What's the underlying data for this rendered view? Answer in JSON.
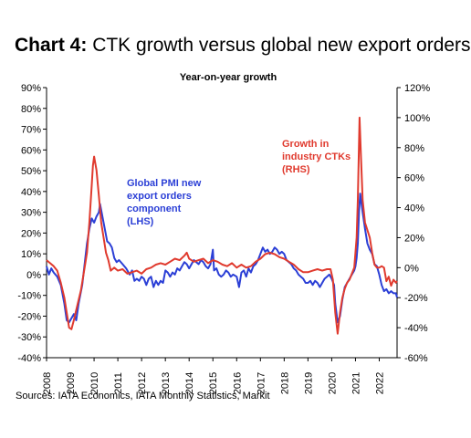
{
  "header": {
    "title_bold": "Chart 4:",
    "title_rest": " CTK growth versus global new export orders"
  },
  "chart_data": {
    "type": "line",
    "title": "Chart 4: CTK growth versus global new export orders",
    "subtitle": "Year-on-year growth",
    "left_axis": {
      "min": -0.4,
      "max": 0.9,
      "ticks": [
        "90%",
        "80%",
        "70%",
        "60%",
        "50%",
        "40%",
        "30%",
        "20%",
        "10%",
        "0%",
        "-10%",
        "-20%",
        "-30%",
        "-40%"
      ]
    },
    "right_axis": {
      "min": -0.6,
      "max": 1.2,
      "ticks": [
        "120%",
        "100%",
        "80%",
        "60%",
        "40%",
        "20%",
        "0%",
        "-20%",
        "-40%",
        "-60%"
      ]
    },
    "x_axis": {
      "min": 2008.0,
      "max": 2022.75,
      "ticks": [
        "2008",
        "2009",
        "2010",
        "2011",
        "2012",
        "2013",
        "2014",
        "2015",
        "2016",
        "2017",
        "2018",
        "2019",
        "2020",
        "2021",
        "2022"
      ]
    },
    "legend": "inline annotations",
    "grid": false,
    "series": [
      {
        "name": "Global PMI new export orders component (LHS)",
        "axis": "left",
        "color": "#2b3fd6",
        "points": [
          [
            2008.0,
            0.04
          ],
          [
            2008.1,
            0.0
          ],
          [
            2008.2,
            0.03
          ],
          [
            2008.3,
            0.01
          ],
          [
            2008.45,
            -0.01
          ],
          [
            2008.6,
            -0.05
          ],
          [
            2008.75,
            -0.14
          ],
          [
            2008.85,
            -0.22
          ],
          [
            2008.95,
            -0.23
          ],
          [
            2009.05,
            -0.21
          ],
          [
            2009.15,
            -0.19
          ],
          [
            2009.25,
            -0.22
          ],
          [
            2009.35,
            -0.14
          ],
          [
            2009.5,
            -0.05
          ],
          [
            2009.6,
            0.05
          ],
          [
            2009.7,
            0.15
          ],
          [
            2009.8,
            0.22
          ],
          [
            2009.9,
            0.27
          ],
          [
            2010.0,
            0.25
          ],
          [
            2010.1,
            0.28
          ],
          [
            2010.2,
            0.3
          ],
          [
            2010.25,
            0.34
          ],
          [
            2010.35,
            0.28
          ],
          [
            2010.45,
            0.22
          ],
          [
            2010.55,
            0.16
          ],
          [
            2010.65,
            0.15
          ],
          [
            2010.75,
            0.13
          ],
          [
            2010.85,
            0.08
          ],
          [
            2010.95,
            0.06
          ],
          [
            2011.05,
            0.07
          ],
          [
            2011.2,
            0.05
          ],
          [
            2011.35,
            0.03
          ],
          [
            2011.5,
            0.0
          ],
          [
            2011.6,
            0.02
          ],
          [
            2011.7,
            -0.03
          ],
          [
            2011.8,
            -0.02
          ],
          [
            2011.9,
            -0.03
          ],
          [
            2012.0,
            -0.01
          ],
          [
            2012.1,
            -0.02
          ],
          [
            2012.2,
            -0.05
          ],
          [
            2012.3,
            -0.02
          ],
          [
            2012.4,
            -0.01
          ],
          [
            2012.5,
            -0.06
          ],
          [
            2012.6,
            -0.03
          ],
          [
            2012.7,
            -0.05
          ],
          [
            2012.8,
            -0.03
          ],
          [
            2012.9,
            -0.04
          ],
          [
            2013.0,
            0.02
          ],
          [
            2013.1,
            0.01
          ],
          [
            2013.2,
            -0.01
          ],
          [
            2013.3,
            0.01
          ],
          [
            2013.4,
            0.0
          ],
          [
            2013.5,
            0.03
          ],
          [
            2013.6,
            0.02
          ],
          [
            2013.7,
            0.04
          ],
          [
            2013.8,
            0.06
          ],
          [
            2013.9,
            0.05
          ],
          [
            2014.0,
            0.03
          ],
          [
            2014.1,
            0.05
          ],
          [
            2014.2,
            0.07
          ],
          [
            2014.3,
            0.06
          ],
          [
            2014.4,
            0.05
          ],
          [
            2014.5,
            0.07
          ],
          [
            2014.6,
            0.06
          ],
          [
            2014.7,
            0.04
          ],
          [
            2014.8,
            0.03
          ],
          [
            2014.9,
            0.05
          ],
          [
            2015.0,
            0.12
          ],
          [
            2015.05,
            0.02
          ],
          [
            2015.15,
            0.03
          ],
          [
            2015.25,
            0.0
          ],
          [
            2015.35,
            -0.01
          ],
          [
            2015.45,
            0.0
          ],
          [
            2015.55,
            0.02
          ],
          [
            2015.65,
            0.01
          ],
          [
            2015.75,
            -0.01
          ],
          [
            2015.85,
            0.0
          ],
          [
            2016.0,
            -0.01
          ],
          [
            2016.1,
            -0.06
          ],
          [
            2016.2,
            0.01
          ],
          [
            2016.3,
            0.02
          ],
          [
            2016.4,
            -0.01
          ],
          [
            2016.5,
            0.03
          ],
          [
            2016.6,
            0.01
          ],
          [
            2016.7,
            0.04
          ],
          [
            2016.8,
            0.05
          ],
          [
            2016.9,
            0.07
          ],
          [
            2017.0,
            0.1
          ],
          [
            2017.1,
            0.13
          ],
          [
            2017.2,
            0.11
          ],
          [
            2017.3,
            0.12
          ],
          [
            2017.4,
            0.1
          ],
          [
            2017.5,
            0.11
          ],
          [
            2017.6,
            0.13
          ],
          [
            2017.7,
            0.12
          ],
          [
            2017.8,
            0.1
          ],
          [
            2017.9,
            0.11
          ],
          [
            2018.0,
            0.1
          ],
          [
            2018.1,
            0.07
          ],
          [
            2018.2,
            0.06
          ],
          [
            2018.3,
            0.05
          ],
          [
            2018.4,
            0.03
          ],
          [
            2018.5,
            0.02
          ],
          [
            2018.6,
            0.0
          ],
          [
            2018.7,
            -0.01
          ],
          [
            2018.8,
            -0.02
          ],
          [
            2018.9,
            -0.04
          ],
          [
            2019.0,
            -0.04
          ],
          [
            2019.1,
            -0.03
          ],
          [
            2019.2,
            -0.05
          ],
          [
            2019.3,
            -0.03
          ],
          [
            2019.4,
            -0.04
          ],
          [
            2019.5,
            -0.06
          ],
          [
            2019.6,
            -0.04
          ],
          [
            2019.7,
            -0.02
          ],
          [
            2019.8,
            -0.01
          ],
          [
            2019.9,
            0.0
          ],
          [
            2020.0,
            -0.02
          ],
          [
            2020.1,
            -0.05
          ],
          [
            2020.15,
            -0.14
          ],
          [
            2020.25,
            -0.23
          ],
          [
            2020.35,
            -0.2
          ],
          [
            2020.45,
            -0.12
          ],
          [
            2020.55,
            -0.06
          ],
          [
            2020.65,
            -0.04
          ],
          [
            2020.75,
            -0.02
          ],
          [
            2020.85,
            0.0
          ],
          [
            2020.95,
            0.02
          ],
          [
            2021.0,
            0.04
          ],
          [
            2021.05,
            0.08
          ],
          [
            2021.1,
            0.15
          ],
          [
            2021.15,
            0.3
          ],
          [
            2021.2,
            0.39
          ],
          [
            2021.3,
            0.3
          ],
          [
            2021.4,
            0.22
          ],
          [
            2021.5,
            0.15
          ],
          [
            2021.6,
            0.12
          ],
          [
            2021.7,
            0.1
          ],
          [
            2021.8,
            0.05
          ],
          [
            2021.9,
            0.04
          ],
          [
            2022.0,
            0.0
          ],
          [
            2022.1,
            -0.05
          ],
          [
            2022.2,
            -0.08
          ],
          [
            2022.3,
            -0.07
          ],
          [
            2022.4,
            -0.09
          ],
          [
            2022.5,
            -0.08
          ],
          [
            2022.6,
            -0.09
          ],
          [
            2022.7,
            -0.09
          ],
          [
            2022.75,
            -0.11
          ]
        ]
      },
      {
        "name": "Growth in industry CTKs (RHS)",
        "axis": "right",
        "color": "#e03a2e",
        "points": [
          [
            2008.0,
            0.05
          ],
          [
            2008.15,
            0.03
          ],
          [
            2008.3,
            0.01
          ],
          [
            2008.45,
            -0.02
          ],
          [
            2008.6,
            -0.1
          ],
          [
            2008.75,
            -0.2
          ],
          [
            2008.85,
            -0.3
          ],
          [
            2008.95,
            -0.4
          ],
          [
            2009.05,
            -0.41
          ],
          [
            2009.15,
            -0.35
          ],
          [
            2009.3,
            -0.25
          ],
          [
            2009.45,
            -0.15
          ],
          [
            2009.6,
            0.0
          ],
          [
            2009.7,
            0.1
          ],
          [
            2009.8,
            0.3
          ],
          [
            2009.9,
            0.55
          ],
          [
            2009.95,
            0.68
          ],
          [
            2010.0,
            0.74
          ],
          [
            2010.1,
            0.65
          ],
          [
            2010.2,
            0.48
          ],
          [
            2010.3,
            0.3
          ],
          [
            2010.4,
            0.2
          ],
          [
            2010.5,
            0.1
          ],
          [
            2010.6,
            0.05
          ],
          [
            2010.7,
            -0.02
          ],
          [
            2010.85,
            0.0
          ],
          [
            2011.0,
            -0.02
          ],
          [
            2011.2,
            -0.01
          ],
          [
            2011.4,
            -0.04
          ],
          [
            2011.6,
            -0.03
          ],
          [
            2011.8,
            -0.02
          ],
          [
            2012.0,
            -0.04
          ],
          [
            2012.2,
            -0.01
          ],
          [
            2012.4,
            0.0
          ],
          [
            2012.6,
            0.02
          ],
          [
            2012.8,
            0.03
          ],
          [
            2013.0,
            0.02
          ],
          [
            2013.2,
            0.04
          ],
          [
            2013.4,
            0.06
          ],
          [
            2013.6,
            0.05
          ],
          [
            2013.8,
            0.08
          ],
          [
            2013.9,
            0.1
          ],
          [
            2014.0,
            0.06
          ],
          [
            2014.2,
            0.04
          ],
          [
            2014.4,
            0.05
          ],
          [
            2014.6,
            0.06
          ],
          [
            2014.8,
            0.03
          ],
          [
            2015.0,
            0.05
          ],
          [
            2015.2,
            0.04
          ],
          [
            2015.4,
            0.02
          ],
          [
            2015.6,
            0.01
          ],
          [
            2015.8,
            0.03
          ],
          [
            2016.0,
            0.0
          ],
          [
            2016.2,
            0.02
          ],
          [
            2016.4,
            0.0
          ],
          [
            2016.6,
            0.01
          ],
          [
            2016.8,
            0.04
          ],
          [
            2017.0,
            0.06
          ],
          [
            2017.2,
            0.09
          ],
          [
            2017.4,
            0.1
          ],
          [
            2017.6,
            0.09
          ],
          [
            2017.8,
            0.07
          ],
          [
            2018.0,
            0.06
          ],
          [
            2018.2,
            0.04
          ],
          [
            2018.4,
            0.02
          ],
          [
            2018.6,
            -0.01
          ],
          [
            2018.8,
            -0.03
          ],
          [
            2019.0,
            -0.03
          ],
          [
            2019.2,
            -0.02
          ],
          [
            2019.4,
            -0.01
          ],
          [
            2019.6,
            -0.02
          ],
          [
            2019.8,
            -0.01
          ],
          [
            2019.95,
            -0.01
          ],
          [
            2020.05,
            -0.08
          ],
          [
            2020.15,
            -0.3
          ],
          [
            2020.25,
            -0.44
          ],
          [
            2020.35,
            -0.3
          ],
          [
            2020.45,
            -0.2
          ],
          [
            2020.55,
            -0.14
          ],
          [
            2020.65,
            -0.1
          ],
          [
            2020.75,
            -0.08
          ],
          [
            2020.85,
            -0.04
          ],
          [
            2020.95,
            0.0
          ],
          [
            2021.0,
            0.1
          ],
          [
            2021.05,
            0.2
          ],
          [
            2021.1,
            0.45
          ],
          [
            2021.17,
            1.0
          ],
          [
            2021.23,
            0.75
          ],
          [
            2021.3,
            0.45
          ],
          [
            2021.4,
            0.3
          ],
          [
            2021.5,
            0.25
          ],
          [
            2021.6,
            0.2
          ],
          [
            2021.7,
            0.1
          ],
          [
            2021.8,
            0.02
          ],
          [
            2021.9,
            0.0
          ],
          [
            2022.0,
            0.0
          ],
          [
            2022.1,
            0.01
          ],
          [
            2022.2,
            0.0
          ],
          [
            2022.3,
            -0.09
          ],
          [
            2022.4,
            -0.06
          ],
          [
            2022.5,
            -0.12
          ],
          [
            2022.6,
            -0.08
          ],
          [
            2022.7,
            -0.1
          ],
          [
            2022.75,
            -0.09
          ]
        ]
      }
    ],
    "annotations": [
      {
        "lines": [
          "Global PMI new",
          "export orders",
          "component",
          "(LHS)"
        ],
        "color": "#2b3fd6"
      },
      {
        "lines": [
          "Growth in",
          "industry CTKs",
          "(RHS)"
        ],
        "color": "#e03a2e"
      }
    ]
  },
  "footer": {
    "sources": "Sources: IATA Economics, IATA Monthly Statistics, Markit"
  }
}
